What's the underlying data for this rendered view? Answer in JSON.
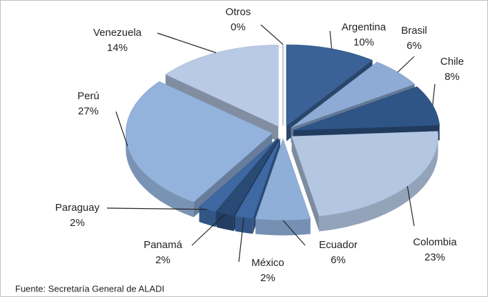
{
  "chart_data": {
    "type": "pie3d",
    "categories": [
      "Argentina",
      "Brasil",
      "Chile",
      "Colombia",
      "Ecuador",
      "México",
      "Panamá",
      "Paraguay",
      "Perú",
      "Venezuela",
      "Otros"
    ],
    "values": [
      10,
      6,
      8,
      23,
      6,
      2,
      2,
      2,
      27,
      14,
      0
    ],
    "value_labels": [
      "10%",
      "6%",
      "8%",
      "23%",
      "6%",
      "2%",
      "2%",
      "2%",
      "27%",
      "14%",
      "0%"
    ],
    "colors": [
      "#3b6296",
      "#8dabd5",
      "#2f5587",
      "#b3c7e3",
      "#8fafd9",
      "#3e69a3",
      "#2a4a76",
      "#3d68a2",
      "#93b3dd",
      "#b8cae5",
      "#2f5587"
    ],
    "source": "Fuente: Secretaría General de  ALADI"
  }
}
